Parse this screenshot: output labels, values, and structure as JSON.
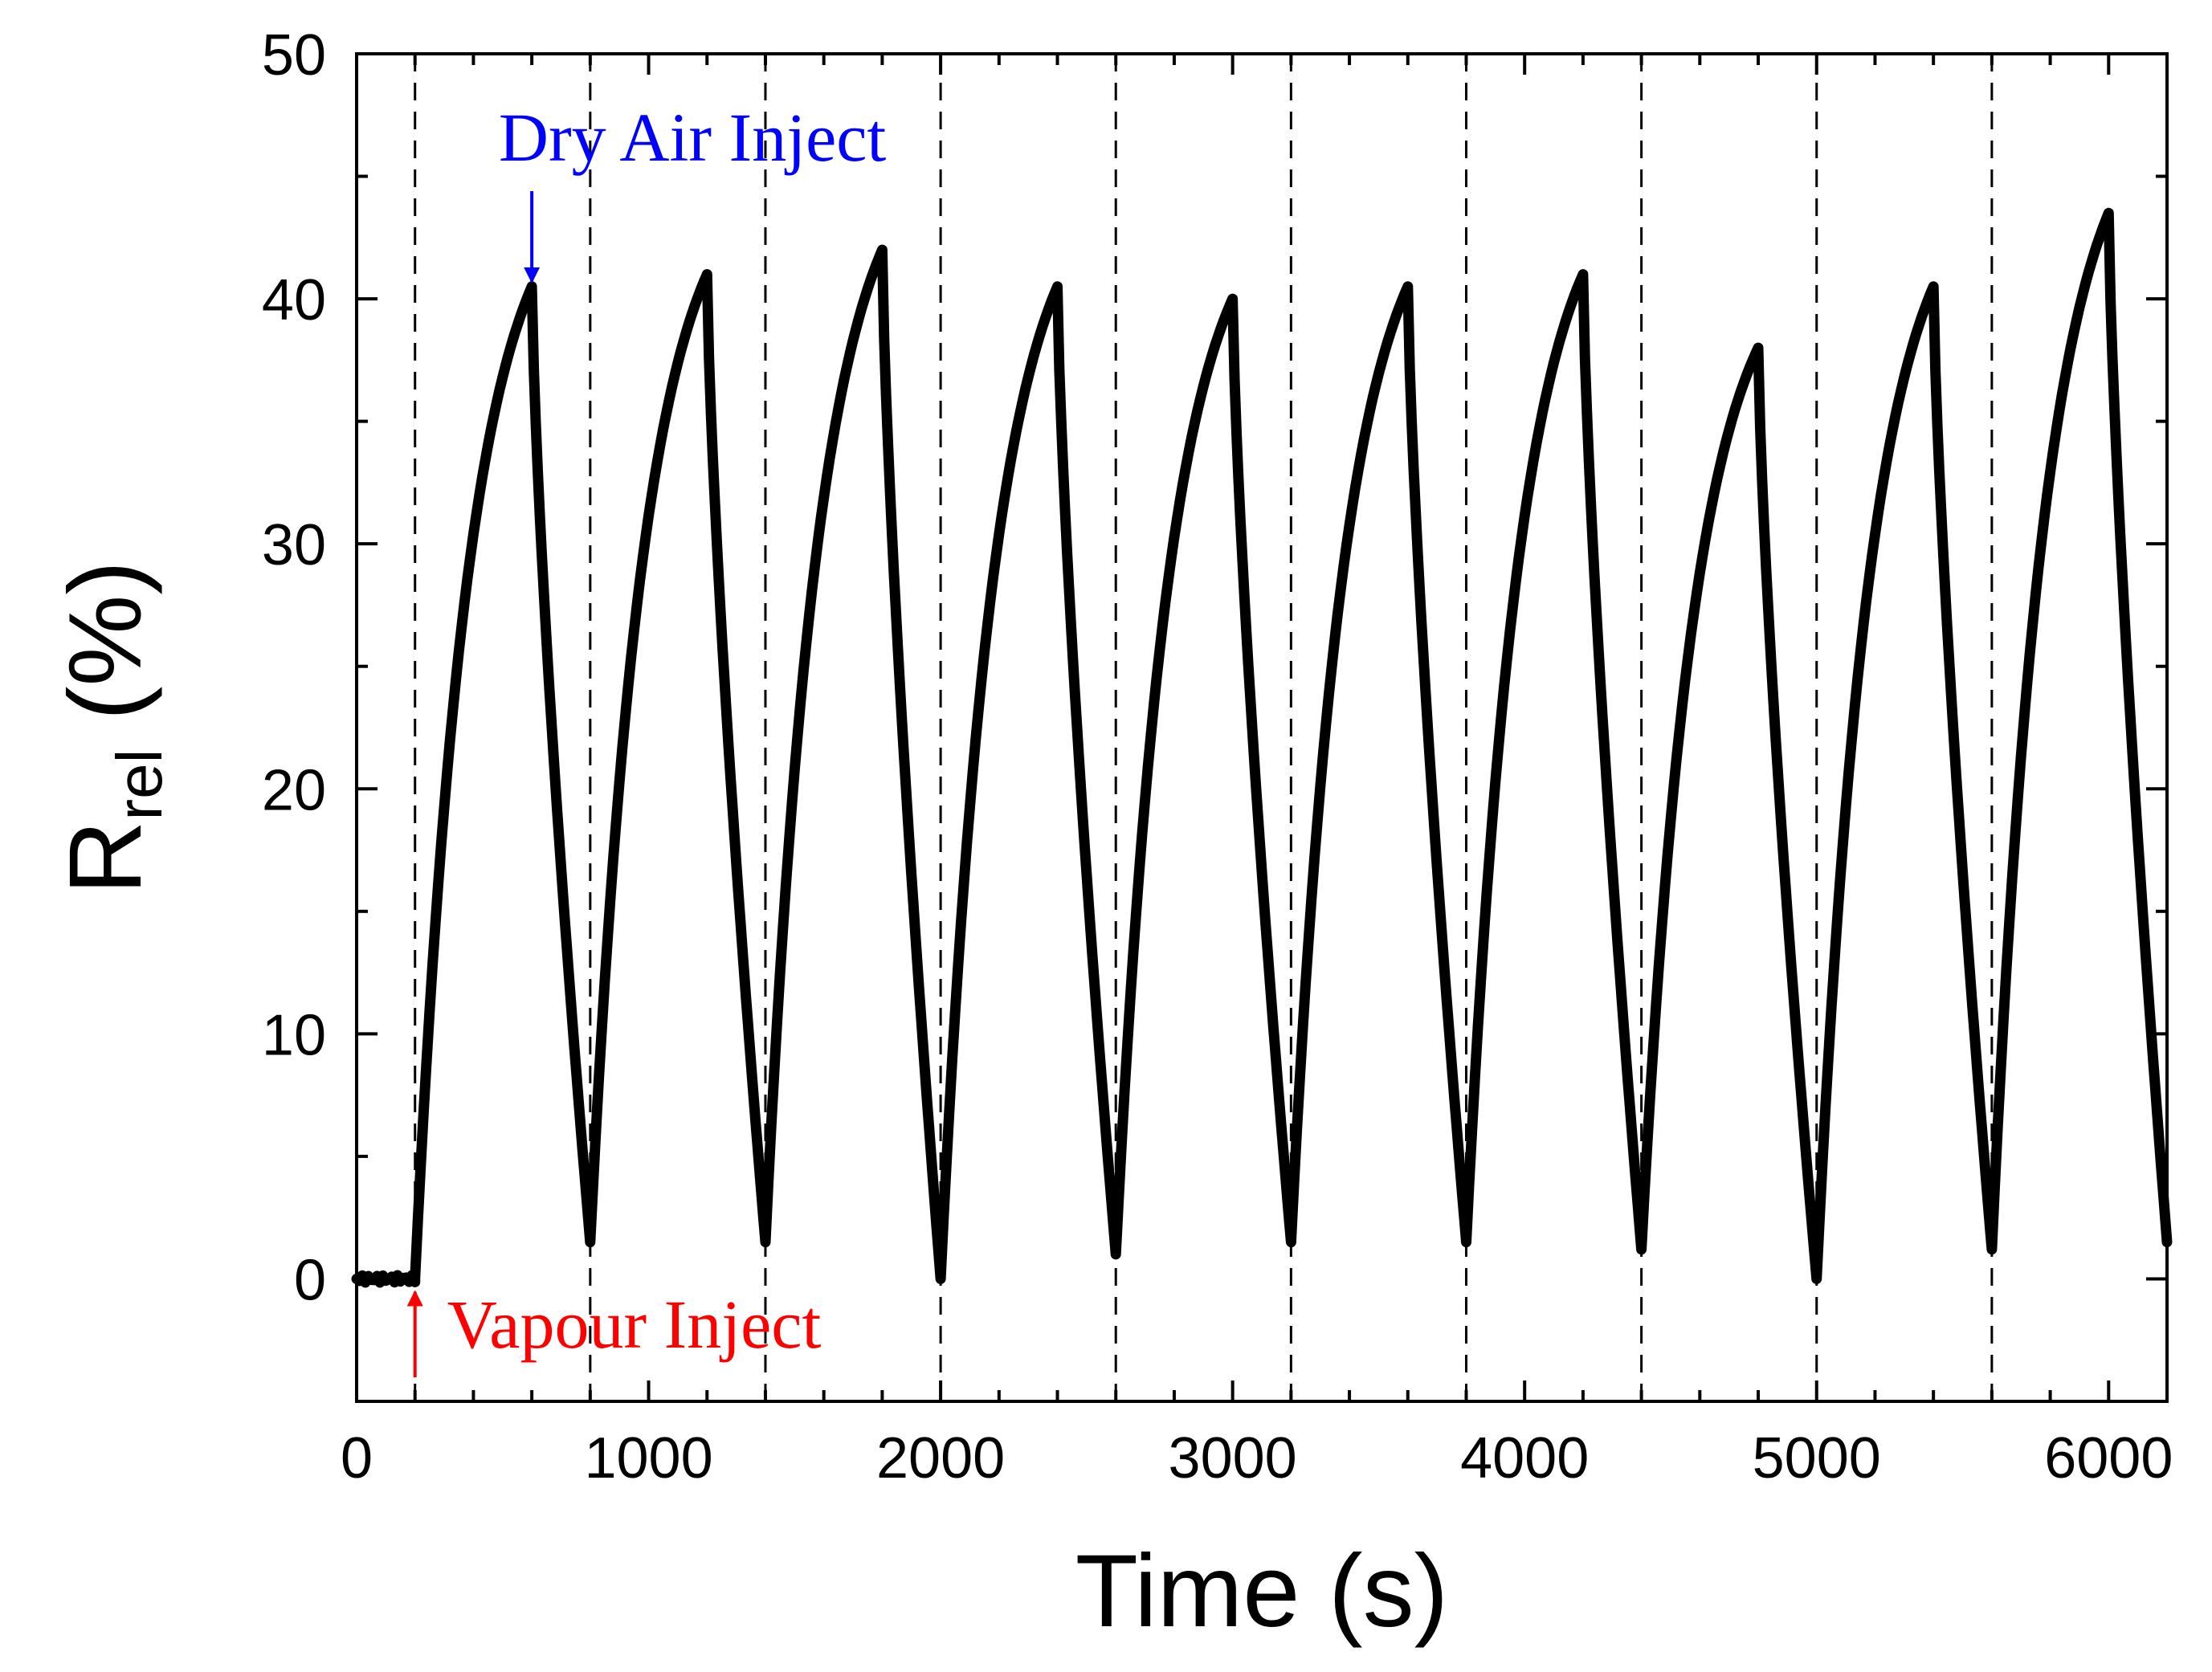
{
  "chart_data": {
    "type": "line",
    "title": "",
    "xlabel": "Time (s)",
    "ylabel": {
      "main": "R",
      "subscript": "rel",
      "unit": " (%)"
    },
    "xlim": [
      0,
      6200
    ],
    "ylim": [
      -5,
      50
    ],
    "xticks": [
      0,
      1000,
      2000,
      3000,
      4000,
      5000,
      6000
    ],
    "xtick_labels": [
      "0",
      "1000",
      "2000",
      "3000",
      "4000",
      "5000",
      "6000"
    ],
    "x_minor_step": 200,
    "yticks": [
      0,
      10,
      20,
      30,
      40,
      50
    ],
    "ytick_labels": [
      "0",
      "10",
      "20",
      "30",
      "40",
      "50"
    ],
    "y_minor_step": 5,
    "grid": false,
    "vertical_dashed_lines": [
      200,
      800,
      1400,
      2000,
      2600,
      3200,
      3800,
      4400,
      5000,
      5600
    ],
    "baseline": {
      "x_start": 0,
      "x_end": 200,
      "value": 0
    },
    "cycles": [
      {
        "start": 200,
        "peak_time": 600,
        "peak": 40.5,
        "end": 800,
        "end_value": 1.5
      },
      {
        "start": 800,
        "peak_time": 1200,
        "peak": 41.0,
        "end": 1400,
        "end_value": 1.5
      },
      {
        "start": 1400,
        "peak_time": 1800,
        "peak": 42.0,
        "end": 2000,
        "end_value": 0.0
      },
      {
        "start": 2000,
        "peak_time": 2400,
        "peak": 40.5,
        "end": 2600,
        "end_value": 1.0
      },
      {
        "start": 2600,
        "peak_time": 3000,
        "peak": 40.0,
        "end": 3200,
        "end_value": 1.5
      },
      {
        "start": 3200,
        "peak_time": 3600,
        "peak": 40.5,
        "end": 3800,
        "end_value": 1.5
      },
      {
        "start": 3800,
        "peak_time": 4200,
        "peak": 41.0,
        "end": 4400,
        "end_value": 1.2
      },
      {
        "start": 4400,
        "peak_time": 4800,
        "peak": 38.0,
        "end": 5000,
        "end_value": 0.0
      },
      {
        "start": 5000,
        "peak_time": 5400,
        "peak": 40.5,
        "end": 5600,
        "end_value": 1.2
      },
      {
        "start": 5600,
        "peak_time": 6000,
        "peak": 43.5,
        "end": 6200,
        "end_value": 1.5
      }
    ],
    "annotations": {
      "dry_air": {
        "text": "Dry Air Inject",
        "color": "#0000ff",
        "x": 600,
        "y": 40.5
      },
      "vapour": {
        "text": "Vapour Inject",
        "color": "#ff0000",
        "x": 200,
        "y": 0
      }
    },
    "colors": {
      "line": "#000000",
      "dashed": "#000000"
    }
  }
}
